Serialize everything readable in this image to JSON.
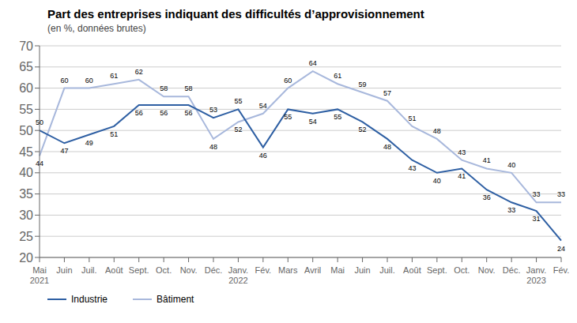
{
  "chart_data": {
    "type": "line",
    "title": "Part des entreprises indiquant des difficultés d’approvisionnement",
    "subtitle": "(en %, données brutes)",
    "categories": [
      "Mai\n2021",
      "Juin",
      "Juil.",
      "Août",
      "Sept.",
      "Oct.",
      "Nov.",
      "Déc.",
      "Janv.\n2022",
      "Fév.",
      "Mars",
      "Avril",
      "Mai",
      "Juin",
      "Juil.",
      "Août",
      "Sept.",
      "Oct.",
      "Nov.",
      "Déc.",
      "Janv.\n2023",
      "Fév."
    ],
    "series": [
      {
        "name": "Industrie",
        "color": "#2e5fa3",
        "values": [
          50,
          47,
          49,
          51,
          56,
          56,
          56,
          53,
          55,
          46,
          55,
          54,
          55,
          52,
          48,
          43,
          40,
          41,
          36,
          33,
          31,
          24
        ]
      },
      {
        "name": "Bâtiment",
        "color": "#a8b8dc",
        "values": [
          44,
          60,
          60,
          61,
          62,
          58,
          58,
          48,
          52,
          54,
          60,
          64,
          61,
          59,
          57,
          51,
          48,
          43,
          41,
          40,
          33,
          33
        ]
      }
    ],
    "ylim": [
      20,
      70
    ],
    "yticks": [
      20,
      25,
      30,
      35,
      40,
      45,
      50,
      55,
      60,
      65,
      70
    ],
    "grid": true,
    "data_labels": true,
    "legend": "bottom"
  }
}
